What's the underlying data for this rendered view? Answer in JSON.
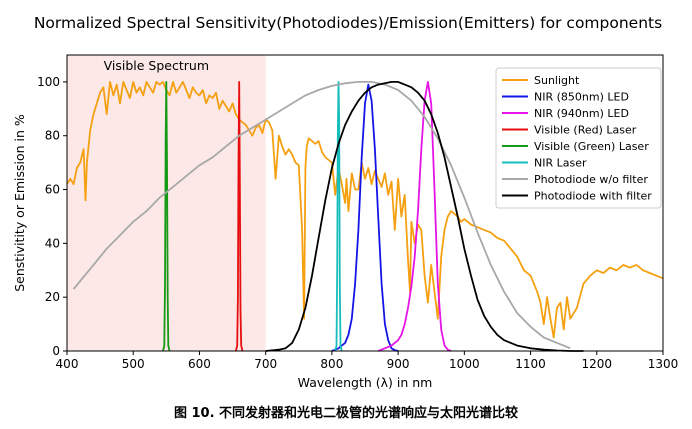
{
  "caption": "图 10. 不同发射器和光电二极管的光谱响应与太阳光谱比较",
  "chart_data": {
    "type": "line",
    "title": "Normalized Spectral Sensitivity(Photodiodes)/Emission(Emitters) for components",
    "xlabel": "Wavelength (λ) in nm",
    "ylabel": "Senstivitity or Emission in %",
    "xlim": [
      400,
      1300
    ],
    "ylim": [
      0,
      110
    ],
    "xticks": [
      400,
      500,
      600,
      700,
      800,
      900,
      1000,
      1100,
      1200,
      1300
    ],
    "yticks": [
      0,
      20,
      40,
      60,
      80,
      100
    ],
    "grid": false,
    "legend_position": "top-right",
    "annotations": [
      {
        "text": "Visible Spectrum",
        "x": 550,
        "y": 106
      }
    ],
    "shaded_region": {
      "x": [
        400,
        700
      ],
      "color": "#fde8e8"
    },
    "series": [
      {
        "name": "Sunlight",
        "color": "#f5a011",
        "x": [
          400,
          405,
          410,
          415,
          420,
          425,
          428,
          430,
          435,
          440,
          445,
          450,
          455,
          460,
          465,
          470,
          475,
          480,
          485,
          490,
          495,
          500,
          505,
          510,
          515,
          520,
          525,
          530,
          535,
          540,
          545,
          550,
          555,
          560,
          565,
          570,
          575,
          580,
          585,
          590,
          595,
          600,
          605,
          610,
          615,
          620,
          625,
          630,
          635,
          640,
          645,
          650,
          655,
          660,
          665,
          670,
          675,
          680,
          685,
          690,
          695,
          700,
          705,
          710,
          715,
          720,
          725,
          730,
          735,
          740,
          745,
          750,
          755,
          758,
          760,
          762,
          765,
          770,
          775,
          780,
          785,
          790,
          795,
          800,
          805,
          810,
          815,
          820,
          822,
          825,
          830,
          835,
          840,
          845,
          850,
          855,
          860,
          865,
          870,
          875,
          880,
          885,
          890,
          895,
          900,
          905,
          910,
          915,
          918,
          920,
          925,
          930,
          935,
          940,
          945,
          950,
          955,
          960,
          965,
          970,
          975,
          980,
          985,
          990,
          995,
          1000,
          1010,
          1020,
          1030,
          1040,
          1050,
          1060,
          1070,
          1080,
          1090,
          1100,
          1110,
          1115,
          1120,
          1125,
          1130,
          1135,
          1140,
          1145,
          1150,
          1155,
          1160,
          1170,
          1180,
          1190,
          1200,
          1210,
          1220,
          1230,
          1240,
          1250,
          1260,
          1270,
          1280,
          1290,
          1300
        ],
        "values": [
          62,
          64,
          62,
          68,
          70,
          75,
          56,
          70,
          82,
          88,
          92,
          96,
          98,
          88,
          100,
          95,
          99,
          92,
          100,
          97,
          94,
          100,
          96,
          98,
          95,
          100,
          98,
          96,
          100,
          99,
          100,
          97,
          95,
          100,
          96,
          98,
          100,
          97,
          94,
          98,
          96,
          95,
          97,
          92,
          95,
          94,
          96,
          90,
          93,
          91,
          89,
          92,
          88,
          86,
          85,
          84,
          82,
          80,
          83,
          84,
          81,
          86,
          85,
          82,
          64,
          80,
          76,
          73,
          75,
          73,
          70,
          69,
          45,
          12,
          68,
          76,
          79,
          78,
          77,
          78,
          74,
          72,
          71,
          70,
          58,
          68,
          62,
          55,
          64,
          52,
          66,
          60,
          60,
          70,
          64,
          68,
          62,
          67,
          64,
          61,
          66,
          58,
          63,
          45,
          64,
          50,
          58,
          34,
          22,
          48,
          40,
          47,
          45,
          28,
          18,
          32,
          22,
          12,
          35,
          45,
          50,
          52,
          51,
          50,
          48,
          49,
          47,
          46,
          45,
          44,
          42,
          41,
          38,
          35,
          30,
          28,
          22,
          18,
          10,
          20,
          12,
          5,
          16,
          18,
          8,
          20,
          12,
          16,
          25,
          28,
          30,
          29,
          31,
          30,
          32,
          31,
          32,
          30,
          29,
          28,
          27
        ]
      },
      {
        "name": "NIR (850nm) LED",
        "color": "#1414e6",
        "x": [
          800,
          810,
          820,
          825,
          830,
          835,
          840,
          845,
          850,
          855,
          860,
          865,
          870,
          875,
          880,
          885,
          890,
          895,
          900
        ],
        "values": [
          0,
          1,
          3,
          6,
          12,
          25,
          45,
          72,
          92,
          99,
          93,
          75,
          50,
          25,
          10,
          4,
          1,
          0.3,
          0
        ]
      },
      {
        "name": "NIR (940nm) LED",
        "color": "#e614e6",
        "x": [
          870,
          880,
          890,
          900,
          905,
          910,
          915,
          920,
          925,
          930,
          935,
          940,
          945,
          950,
          955,
          960,
          965,
          970,
          975,
          980
        ],
        "values": [
          0,
          1,
          2,
          4,
          6,
          10,
          16,
          24,
          35,
          52,
          75,
          93,
          100,
          92,
          60,
          25,
          8,
          2,
          0.5,
          0
        ]
      },
      {
        "name": "Visible (Red) Laser",
        "color": "#e60e0e",
        "x": [
          655,
          657,
          658,
          659,
          660,
          661,
          662,
          663,
          665
        ],
        "values": [
          0,
          2,
          20,
          70,
          100,
          65,
          15,
          2,
          0
        ]
      },
      {
        "name": "Visible (Green) Laser",
        "color": "#149a14",
        "x": [
          545,
          547,
          548,
          549,
          550,
          551,
          552,
          553,
          555
        ],
        "values": [
          0,
          2,
          25,
          80,
          100,
          70,
          20,
          2,
          0
        ]
      },
      {
        "name": "NIR Laser",
        "color": "#17bcbc",
        "x": [
          805,
          807,
          808,
          809,
          810,
          811,
          812,
          813,
          815
        ],
        "values": [
          0,
          2,
          30,
          80,
          100,
          85,
          25,
          2,
          0
        ]
      },
      {
        "name": "Photodiode w/o filter",
        "color": "#a8a8a8",
        "x": [
          410,
          420,
          440,
          460,
          480,
          500,
          520,
          540,
          560,
          580,
          600,
          620,
          640,
          660,
          680,
          700,
          720,
          740,
          760,
          780,
          800,
          820,
          840,
          860,
          880,
          900,
          920,
          940,
          960,
          980,
          1000,
          1020,
          1040,
          1060,
          1080,
          1100,
          1120,
          1140,
          1150,
          1160
        ],
        "values": [
          23,
          26,
          32,
          38,
          43,
          48,
          52,
          57,
          61,
          65,
          69,
          72,
          76,
          80,
          83,
          86,
          89,
          92,
          95,
          97,
          98.5,
          99.5,
          100,
          100,
          99,
          97,
          93,
          87,
          79,
          69,
          57,
          44,
          32,
          22,
          14,
          9,
          5,
          3,
          2,
          1
        ]
      },
      {
        "name": "Photodiode with filter",
        "color": "#000000",
        "x": [
          700,
          720,
          730,
          740,
          750,
          760,
          770,
          780,
          790,
          800,
          810,
          820,
          830,
          840,
          850,
          860,
          870,
          880,
          890,
          900,
          910,
          920,
          930,
          940,
          950,
          960,
          970,
          980,
          990,
          1000,
          1010,
          1020,
          1030,
          1040,
          1050,
          1060,
          1080,
          1100,
          1120,
          1140,
          1160,
          1180
        ],
        "values": [
          0,
          0.5,
          1,
          3,
          8,
          16,
          28,
          42,
          56,
          68,
          77,
          84,
          89,
          93,
          96,
          98,
          99,
          99.5,
          100,
          100,
          99,
          98,
          96,
          93,
          88,
          81,
          72,
          61,
          50,
          38,
          28,
          19,
          13,
          9,
          6,
          4,
          2,
          1,
          0.5,
          0.2,
          0,
          0
        ]
      }
    ]
  }
}
